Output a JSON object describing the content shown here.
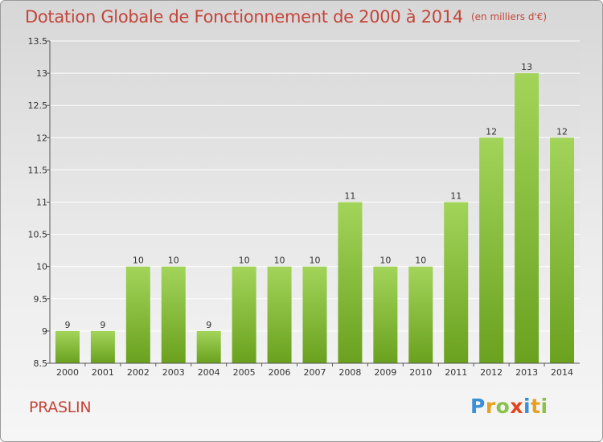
{
  "header": {
    "title": "Dotation Globale de Fonctionnement de 2000 à 2014",
    "unit": "(en milliers d'€)"
  },
  "footer": {
    "commune": "PRASLIN",
    "logo_letters": [
      {
        "ch": "P",
        "color": "#3a8fd6"
      },
      {
        "ch": "r",
        "color": "#e7a020"
      },
      {
        "ch": "o",
        "color": "#8bc34a"
      },
      {
        "ch": "x",
        "color": "#e2461f"
      },
      {
        "ch": "i",
        "color": "#3a8fd6"
      },
      {
        "ch": "t",
        "color": "#e7a020"
      },
      {
        "ch": "i",
        "color": "#8bc34a"
      }
    ]
  },
  "chart_data": {
    "type": "bar",
    "title": "Dotation Globale de Fonctionnement de 2000 à 2014",
    "xlabel": "",
    "ylabel": "",
    "categories": [
      "2000",
      "2001",
      "2002",
      "2003",
      "2004",
      "2005",
      "2006",
      "2007",
      "2008",
      "2009",
      "2010",
      "2011",
      "2012",
      "2013",
      "2014"
    ],
    "values": [
      9,
      9,
      10,
      10,
      9,
      10,
      10,
      10,
      11,
      10,
      10,
      11,
      12,
      13,
      12
    ],
    "ylim": [
      8.5,
      13.5
    ],
    "yticks": [
      "8.5",
      "9",
      "9.5",
      "10",
      "10.5",
      "11",
      "11.5",
      "12",
      "12.5",
      "13",
      "13.5"
    ],
    "grid": true,
    "colors": {
      "bar_top": "#a2d45a",
      "bar_bottom": "#6aa11e",
      "axis": "#555555",
      "grid": "#ffffff"
    }
  }
}
